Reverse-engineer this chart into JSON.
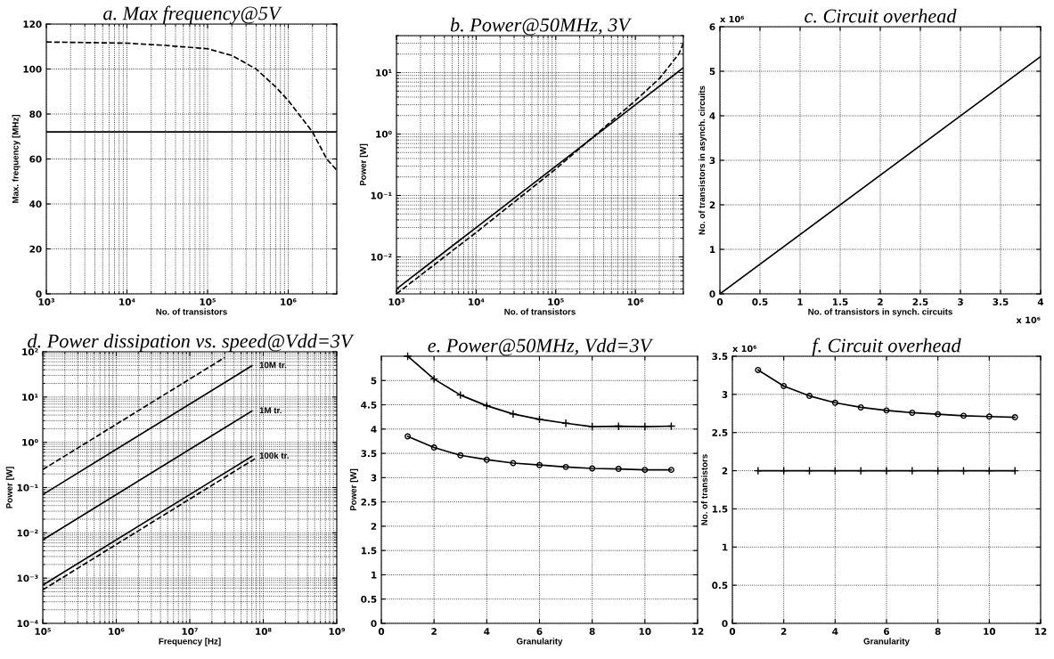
{
  "chart_data": [
    {
      "type": "line",
      "title": "a. Max frequency@5V",
      "xlabel": "No. of transistors",
      "ylabel": "Max. frequency [MHz]",
      "log": "x",
      "grid": true,
      "xlim": [
        1000,
        4000000
      ],
      "xticks": [
        {
          "value": 1000,
          "label": "10³"
        },
        {
          "value": 10000,
          "label": "10⁴"
        },
        {
          "value": 100000,
          "label": "10⁵"
        },
        {
          "value": 1000000,
          "label": "10⁶"
        }
      ],
      "ylim": [
        0,
        120
      ],
      "yticks": [
        0,
        20,
        40,
        60,
        80,
        100,
        120
      ],
      "series": [
        {
          "color": "#000000",
          "line_style": "dashed",
          "x": [
            1000,
            10000,
            30000,
            100000,
            200000,
            400000,
            700000,
            1000000,
            2000000,
            3000000,
            4000000
          ],
          "values": [
            112,
            111.5,
            110.5,
            109,
            106,
            100,
            92,
            86,
            72,
            60,
            55
          ]
        },
        {
          "color": "#000000",
          "line_style": "solid",
          "x": [
            1000,
            4000000
          ],
          "values": [
            72,
            72
          ]
        }
      ]
    },
    {
      "type": "line",
      "title": "b. Power@50MHz, 3V",
      "xlabel": "No. of transistors",
      "ylabel": "Power [W]",
      "log": "xy",
      "grid": true,
      "xlim": [
        1000,
        4000000
      ],
      "xticks": [
        {
          "value": 1000,
          "label": "10³"
        },
        {
          "value": 10000,
          "label": "10⁴"
        },
        {
          "value": 100000,
          "label": "10⁵"
        },
        {
          "value": 1000000,
          "label": "10⁶"
        }
      ],
      "ylim": [
        0.0025,
        40
      ],
      "yticks": [
        {
          "value": 0.01,
          "label": "10⁻²"
        },
        {
          "value": 0.1,
          "label": "10⁻¹"
        },
        {
          "value": 1,
          "label": "10⁰"
        },
        {
          "value": 10,
          "label": "10¹"
        }
      ],
      "series": [
        {
          "color": "#000000",
          "line_style": "solid",
          "x": [
            1000,
            10000,
            100000,
            1000000,
            4000000
          ],
          "values": [
            0.003,
            0.03,
            0.3,
            3,
            12
          ]
        },
        {
          "color": "#000000",
          "line_style": "dashed",
          "x": [
            1000,
            10000,
            100000,
            1000000,
            2000000,
            3500000,
            4000000
          ],
          "values": [
            0.0025,
            0.025,
            0.27,
            3.5,
            8,
            20,
            30
          ]
        }
      ]
    },
    {
      "type": "line",
      "title": "c. Circuit overhead",
      "xlabel": "No. of transistors in synch. circuits",
      "ylabel": "No. of transistors in asynch. circuits",
      "grid": true,
      "annotations": [
        "x 10⁶",
        "x 10⁶"
      ],
      "xlim": [
        0,
        4
      ],
      "xticks": [
        0,
        0.5,
        1,
        1.5,
        2,
        2.5,
        3,
        3.5,
        4
      ],
      "ylim": [
        0,
        6
      ],
      "yticks": [
        0,
        1,
        2,
        3,
        4,
        5,
        6
      ],
      "series": [
        {
          "color": "#000000",
          "line_style": "solid",
          "x": [
            0,
            4
          ],
          "values": [
            0,
            5.33
          ]
        }
      ]
    },
    {
      "type": "line",
      "title": "d. Power dissipation vs. speed@Vdd=3V",
      "xlabel": "Frequency [Hz]",
      "ylabel": "Power [W]",
      "log": "xy",
      "grid": true,
      "xlim": [
        100000,
        1000000000
      ],
      "xticks": [
        {
          "value": 100000,
          "label": "10⁵"
        },
        {
          "value": 1000000,
          "label": "10⁶"
        },
        {
          "value": 10000000,
          "label": "10⁷"
        },
        {
          "value": 100000000,
          "label": "10⁸"
        },
        {
          "value": 1000000000,
          "label": "10⁹"
        }
      ],
      "ylim": [
        0.0001,
        100
      ],
      "yticks": [
        {
          "value": 0.0001,
          "label": "10⁻⁴"
        },
        {
          "value": 0.001,
          "label": "10⁻³"
        },
        {
          "value": 0.01,
          "label": "10⁻²"
        },
        {
          "value": 0.1,
          "label": "10⁻¹"
        },
        {
          "value": 1,
          "label": "10⁰"
        },
        {
          "value": 10,
          "label": "10¹"
        },
        {
          "value": 100,
          "label": "10²"
        }
      ],
      "series": [
        {
          "color": "#000000",
          "line_style": "dashed",
          "x": [
            100000,
            30000000
          ],
          "values": [
            0.25,
            75
          ]
        },
        {
          "name": "10M tr.",
          "color": "#000000",
          "line_style": "solid",
          "x": [
            100000,
            70000000
          ],
          "values": [
            0.07,
            49
          ]
        },
        {
          "name": "1M tr.",
          "color": "#000000",
          "line_style": "solid",
          "x": [
            100000,
            70000000
          ],
          "values": [
            0.007,
            4.9
          ]
        },
        {
          "name": "100k tr.",
          "color": "#000000",
          "line_style": "solid",
          "x": [
            100000,
            70000000
          ],
          "values": [
            0.0007,
            0.49
          ]
        },
        {
          "color": "#000000",
          "line_style": "dashed",
          "x": [
            100000,
            80000000
          ],
          "values": [
            0.00055,
            0.45
          ]
        }
      ]
    },
    {
      "type": "line",
      "title": "e. Power@50MHz, Vdd=3V",
      "xlabel": "Granularity",
      "ylabel": "Power [W]",
      "grid": true,
      "xlim": [
        0,
        12
      ],
      "xticks": [
        0,
        2,
        4,
        6,
        8,
        10,
        12
      ],
      "ylim": [
        0,
        5.5
      ],
      "yticks": [
        0,
        0.5,
        1,
        1.5,
        2,
        2.5,
        3,
        3.5,
        4,
        4.5,
        5
      ],
      "series": [
        {
          "color": "#000000",
          "line_style": "solid",
          "marker": "cross",
          "x": [
            1,
            2,
            3,
            4,
            5,
            6,
            7,
            8,
            9,
            10,
            11
          ],
          "values": [
            5.5,
            5.03,
            4.7,
            4.48,
            4.31,
            4.2,
            4.12,
            4.05,
            4.06,
            4.05,
            4.06
          ]
        },
        {
          "color": "#000000",
          "line_style": "solid",
          "marker": "circle",
          "x": [
            1,
            2,
            3,
            4,
            5,
            6,
            7,
            8,
            9,
            10,
            11
          ],
          "values": [
            3.85,
            3.62,
            3.46,
            3.37,
            3.3,
            3.26,
            3.22,
            3.19,
            3.18,
            3.16,
            3.16
          ]
        }
      ]
    },
    {
      "type": "line",
      "title": "f. Circuit overhead",
      "xlabel": "Granularity",
      "ylabel": "No. of transistors",
      "grid": true,
      "annotations": [
        "x 10⁶"
      ],
      "xlim": [
        0,
        12
      ],
      "xticks": [
        0,
        2,
        4,
        6,
        8,
        10,
        12
      ],
      "ylim": [
        0,
        3.5
      ],
      "yticks": [
        0,
        0.5,
        1,
        1.5,
        2,
        2.5,
        3,
        3.5
      ],
      "series": [
        {
          "color": "#000000",
          "line_style": "solid",
          "marker": "circle",
          "x": [
            1,
            2,
            3,
            4,
            5,
            6,
            7,
            8,
            9,
            10,
            11
          ],
          "values": [
            3.32,
            3.11,
            2.98,
            2.89,
            2.83,
            2.79,
            2.76,
            2.74,
            2.72,
            2.71,
            2.7
          ]
        },
        {
          "color": "#000000",
          "line_style": "solid",
          "marker": "cross",
          "x": [
            1,
            2,
            3,
            4,
            5,
            6,
            7,
            8,
            9,
            10,
            11
          ],
          "values": [
            2.0,
            2.0,
            2.0,
            2.0,
            2.0,
            2.0,
            2.0,
            2.0,
            2.0,
            2.0,
            2.0
          ]
        }
      ]
    }
  ]
}
